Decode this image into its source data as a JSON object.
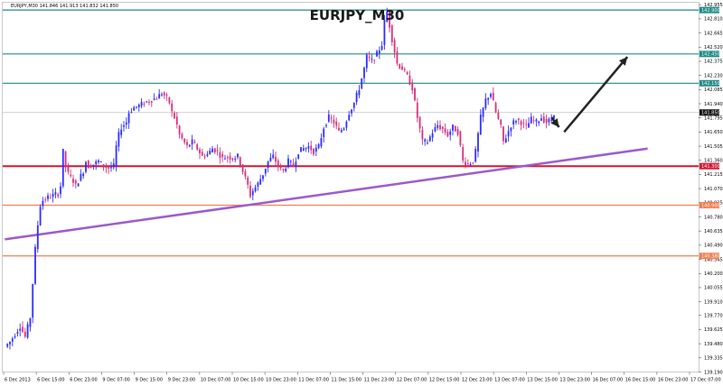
{
  "header": {
    "symbol_line": "EURJPY,M30  141.846  141.913  141.832  141.850"
  },
  "chart_data": {
    "type": "candlestick",
    "title": "EURJPY_M30",
    "ylim": [
      139.19,
      142.98
    ],
    "y_ticks": [
      142.955,
      142.81,
      142.665,
      142.52,
      142.375,
      142.23,
      142.085,
      141.94,
      141.795,
      141.65,
      141.505,
      141.36,
      141.215,
      141.07,
      140.925,
      140.78,
      140.635,
      140.49,
      140.345,
      140.2,
      140.055,
      139.91,
      139.77,
      139.625,
      139.48,
      139.335,
      139.19
    ],
    "x_labels": [
      "6 Dec 2013",
      "6 Dec 15:00",
      "6 Dec 23:00",
      "9 Dec 07:00",
      "9 Dec 15:00",
      "9 Dec 23:00",
      "10 Dec 07:00",
      "10 Dec 15:00",
      "10 Dec 23:00",
      "11 Dec 07:00",
      "11 Dec 15:00",
      "11 Dec 23:00",
      "12 Dec 07:00",
      "12 Dec 15:00",
      "12 Dec 23:00",
      "13 Dec 07:00",
      "13 Dec 15:00",
      "13 Dec 23:00",
      "16 Dec 07:00",
      "16 Dec 15:00",
      "16 Dec 23:00",
      "17 Dec 07:00"
    ],
    "current_price": 141.85,
    "current_price_label": "141.850",
    "levels": [
      {
        "value": 142.9,
        "label": "142.900",
        "color": "#1f8a85"
      },
      {
        "value": 142.45,
        "label": "142.450",
        "color": "#1f8a85"
      },
      {
        "value": 142.15,
        "label": "142.150",
        "color": "#1f8a85"
      },
      {
        "value": 141.3,
        "label": "141.300",
        "color": "#d4152e"
      },
      {
        "value": 140.9,
        "label": "140.900",
        "color": "#f07d50"
      },
      {
        "value": 140.38,
        "label": "140.380",
        "color": "#f07d50"
      }
    ],
    "trendline": {
      "from": [
        0,
        140.55
      ],
      "to": [
        254,
        141.48
      ],
      "color": "#9b59c9"
    },
    "close_path": [
      [
        0,
        139.45
      ],
      [
        2,
        139.5
      ],
      [
        4,
        139.58
      ],
      [
        6,
        139.66
      ],
      [
        8,
        139.55
      ],
      [
        10,
        139.75
      ],
      [
        11,
        140.1
      ],
      [
        12,
        140.45
      ],
      [
        13,
        140.7
      ],
      [
        14,
        140.9
      ],
      [
        15,
        140.95
      ],
      [
        17,
        140.98
      ],
      [
        19,
        141.0
      ],
      [
        21,
        141.02
      ],
      [
        22,
        141.1
      ],
      [
        23,
        141.45
      ],
      [
        24,
        141.3
      ],
      [
        25,
        141.22
      ],
      [
        26,
        141.18
      ],
      [
        27,
        141.15
      ],
      [
        28,
        141.1
      ],
      [
        30,
        141.2
      ],
      [
        31,
        141.25
      ],
      [
        32,
        141.35
      ],
      [
        33,
        141.3
      ],
      [
        35,
        141.32
      ],
      [
        37,
        141.35
      ],
      [
        39,
        141.3
      ],
      [
        41,
        141.28
      ],
      [
        43,
        141.3
      ],
      [
        44,
        141.5
      ],
      [
        45,
        141.62
      ],
      [
        46,
        141.7
      ],
      [
        48,
        141.75
      ],
      [
        49,
        141.85
      ],
      [
        51,
        141.9
      ],
      [
        53,
        141.92
      ],
      [
        55,
        141.95
      ],
      [
        58,
        141.98
      ],
      [
        60,
        142.0
      ],
      [
        62,
        142.05
      ],
      [
        64,
        142.0
      ],
      [
        65,
        141.95
      ],
      [
        66,
        141.85
      ],
      [
        67,
        141.8
      ],
      [
        68,
        141.72
      ],
      [
        69,
        141.62
      ],
      [
        70,
        141.58
      ],
      [
        72,
        141.5
      ],
      [
        74,
        141.55
      ],
      [
        76,
        141.48
      ],
      [
        78,
        141.4
      ],
      [
        80,
        141.42
      ],
      [
        82,
        141.48
      ],
      [
        84,
        141.45
      ],
      [
        86,
        141.38
      ],
      [
        88,
        141.4
      ],
      [
        90,
        141.38
      ],
      [
        92,
        141.4
      ],
      [
        94,
        141.25
      ],
      [
        96,
        141.1
      ],
      [
        97,
        141.0
      ],
      [
        98,
        141.05
      ],
      [
        100,
        141.12
      ],
      [
        102,
        141.22
      ],
      [
        104,
        141.35
      ],
      [
        106,
        141.4
      ],
      [
        108,
        141.3
      ],
      [
        110,
        141.25
      ],
      [
        112,
        141.35
      ],
      [
        114,
        141.3
      ],
      [
        116,
        141.45
      ],
      [
        118,
        141.48
      ],
      [
        120,
        141.5
      ],
      [
        122,
        141.45
      ],
      [
        124,
        141.5
      ],
      [
        126,
        141.7
      ],
      [
        128,
        141.8
      ],
      [
        130,
        141.75
      ],
      [
        132,
        141.65
      ],
      [
        134,
        141.7
      ],
      [
        136,
        141.85
      ],
      [
        138,
        141.95
      ],
      [
        140,
        142.1
      ],
      [
        142,
        142.3
      ],
      [
        143,
        142.42
      ],
      [
        145,
        142.38
      ],
      [
        147,
        142.45
      ],
      [
        149,
        142.55
      ],
      [
        150,
        142.78
      ],
      [
        151,
        142.88
      ],
      [
        153,
        142.6
      ],
      [
        155,
        142.35
      ],
      [
        157,
        142.3
      ],
      [
        159,
        142.22
      ],
      [
        161,
        142.1
      ],
      [
        163,
        141.8
      ],
      [
        165,
        141.55
      ],
      [
        167,
        141.55
      ],
      [
        169,
        141.65
      ],
      [
        171,
        141.72
      ],
      [
        173,
        141.68
      ],
      [
        175,
        141.62
      ],
      [
        177,
        141.7
      ],
      [
        179,
        141.65
      ],
      [
        181,
        141.35
      ],
      [
        183,
        141.32
      ],
      [
        185,
        141.35
      ],
      [
        186,
        141.45
      ],
      [
        188,
        141.8
      ],
      [
        190,
        141.98
      ],
      [
        192,
        142.05
      ],
      [
        194,
        141.85
      ],
      [
        196,
        141.7
      ],
      [
        197,
        141.55
      ],
      [
        198,
        141.6
      ],
      [
        200,
        141.72
      ],
      [
        202,
        141.78
      ],
      [
        204,
        141.75
      ],
      [
        206,
        141.7
      ],
      [
        208,
        141.78
      ],
      [
        210,
        141.75
      ],
      [
        212,
        141.8
      ],
      [
        214,
        141.75
      ],
      [
        216,
        141.78
      ],
      [
        217,
        141.85
      ]
    ],
    "arrows": [
      {
        "from": [
          216,
          141.8
        ],
        "to": [
          219,
          141.7
        ],
        "color": "#222222"
      },
      {
        "from": [
          221,
          141.65
        ],
        "to": [
          246,
          142.42
        ],
        "color": "#222222"
      }
    ]
  }
}
